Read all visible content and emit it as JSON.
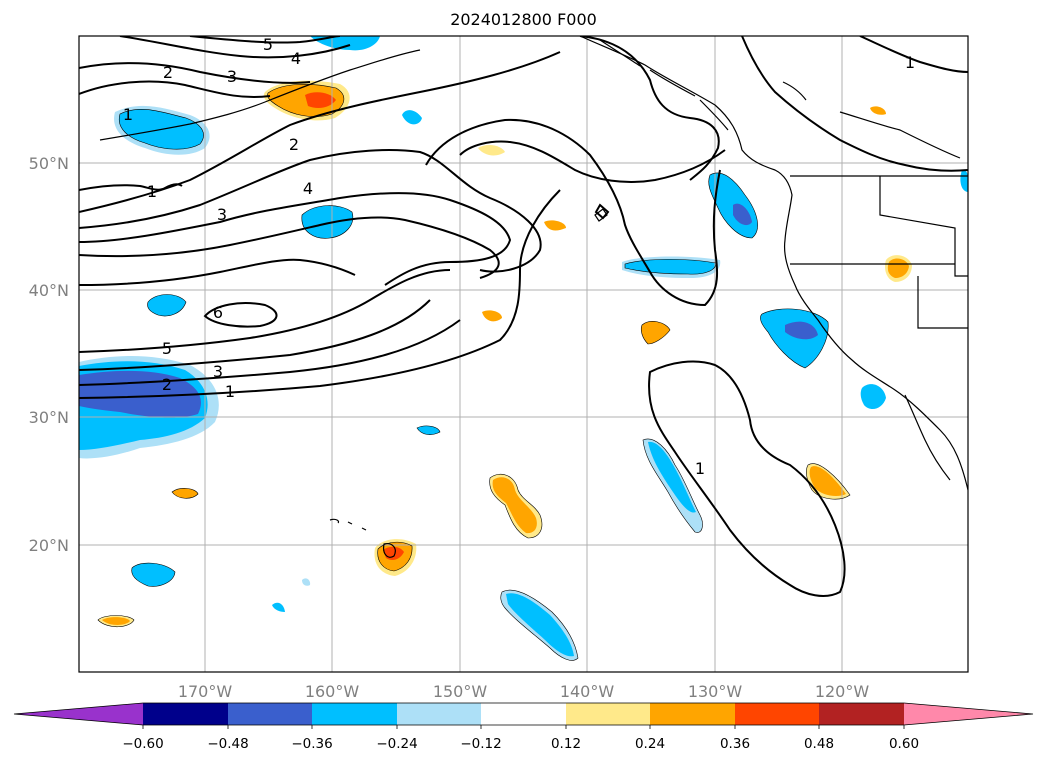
{
  "title": "2024012800 F000",
  "map": {
    "latitude_labels": [
      "50°N",
      "40°N",
      "30°N",
      "20°N"
    ],
    "longitude_labels": [
      "170°W",
      "160°W",
      "150°W",
      "140°W",
      "130°W",
      "120°W"
    ],
    "contour_labels": [
      "5",
      "4",
      "2",
      "3",
      "1",
      "2",
      "1",
      "4",
      "3",
      "6",
      "5",
      "3",
      "2",
      "1",
      "1",
      "1"
    ]
  },
  "colorbar": {
    "ticks": [
      "−0.60",
      "−0.48",
      "−0.36",
      "−0.24",
      "−0.12",
      "0.12",
      "0.24",
      "0.36",
      "0.48",
      "0.60"
    ],
    "colors": [
      "#9932CC",
      "#00008B",
      "#3A5FCD",
      "#00BFFF",
      "#ADE0F7",
      "#FFFFFF",
      "#FFE98A",
      "#FFA500",
      "#FF4500",
      "#B22222",
      "#FF88AA"
    ]
  }
}
